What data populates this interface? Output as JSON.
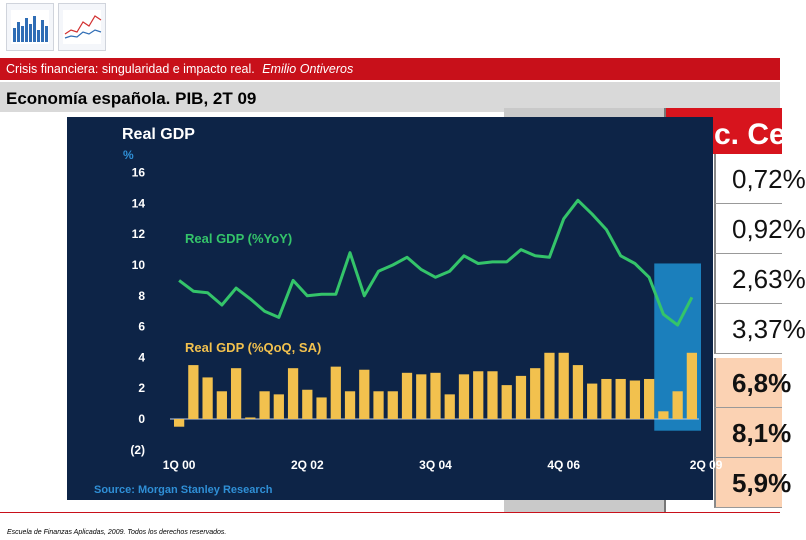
{
  "header": {
    "banner_title": "Crisis financiera: singularidad e impacto real.",
    "banner_author": "Emilio Ontiveros",
    "slide_title": "Economía española. PIB, 2T 09"
  },
  "table": {
    "header_label": "c. Ce",
    "values": [
      "0,72%",
      "0,92%",
      "2,63%",
      "3,37%",
      "6,8%",
      "8,1%",
      "5,9%"
    ],
    "highlighted_from": 4
  },
  "chart_data": {
    "type": "bar",
    "title": "Real GDP",
    "ylabel": "%",
    "ylim": [
      -2,
      16
    ],
    "yticks": [
      -2,
      0,
      2,
      4,
      6,
      8,
      10,
      12,
      14,
      16
    ],
    "ytick_labels": [
      "(2)",
      "0",
      "2",
      "4",
      "6",
      "8",
      "10",
      "12",
      "14",
      "16"
    ],
    "xtick_labels": [
      "1Q 00",
      "2Q 02",
      "3Q 04",
      "4Q 06",
      "2Q 09"
    ],
    "xtick_indices": [
      0,
      9,
      18,
      27,
      37
    ],
    "series": [
      {
        "name": "Real GDP (%YoY)",
        "kind": "line",
        "color": "#34c46a",
        "values": [
          9.0,
          8.3,
          8.2,
          7.4,
          8.5,
          7.8,
          7.0,
          6.6,
          9.0,
          8.0,
          8.1,
          8.1,
          10.8,
          8.0,
          9.6,
          10.0,
          10.5,
          9.7,
          9.2,
          9.6,
          10.6,
          10.1,
          10.2,
          10.2,
          11.0,
          10.6,
          10.5,
          13.0,
          14.2,
          13.3,
          12.3,
          10.6,
          10.1,
          9.2,
          6.8,
          6.1,
          7.9
        ]
      },
      {
        "name": "Real GDP (%QoQ, SA)",
        "kind": "bar",
        "color": "#f2c14e",
        "values": [
          -0.5,
          3.5,
          2.7,
          1.8,
          3.3,
          0.1,
          1.8,
          1.6,
          3.3,
          1.9,
          1.4,
          3.4,
          1.8,
          3.2,
          1.8,
          1.8,
          3.0,
          2.9,
          3.0,
          1.6,
          2.9,
          3.1,
          3.1,
          2.2,
          2.8,
          3.3,
          4.3,
          4.3,
          3.5,
          2.3,
          2.6,
          2.6,
          2.5,
          2.6,
          0.5,
          1.8,
          4.3
        ]
      }
    ],
    "highlight_window": {
      "from_index": 34,
      "to_index": 36
    },
    "source": "Source: Morgan Stanley Research"
  },
  "footer": {
    "text": "Escuela de Finanzas Aplicadas, 2009. Todos los derechos reservados."
  },
  "colors": {
    "banner": "#c8101a",
    "chart_bg": "#0d2447",
    "highlight": "#1f8fd1"
  }
}
